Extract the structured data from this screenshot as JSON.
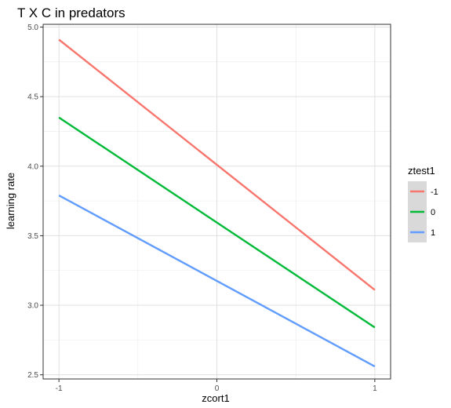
{
  "chart_data": {
    "type": "line",
    "title": "T X C in predators",
    "xlabel": "zcort1",
    "ylabel": "learning rate",
    "x": [
      -1,
      1
    ],
    "xlim": [
      -1.1,
      1.1
    ],
    "ylim": [
      2.47,
      5.02
    ],
    "xticks": [
      -1,
      0,
      1
    ],
    "xtick_labels": [
      "-1",
      "0",
      "1"
    ],
    "yticks": [
      2.5,
      3.0,
      3.5,
      4.0,
      4.5,
      5.0
    ],
    "ytick_labels": [
      "2.5",
      "3.0",
      "3.5",
      "4.0",
      "4.5",
      "5.0"
    ],
    "grid": true,
    "legend_title": "ztest1",
    "legend_position": "right",
    "series": [
      {
        "name": "-1",
        "values": [
          4.91,
          3.11
        ],
        "color": "#F8766D"
      },
      {
        "name": "0",
        "values": [
          4.35,
          2.84
        ],
        "color": "#00BA38"
      },
      {
        "name": "1",
        "values": [
          3.79,
          2.56
        ],
        "color": "#619CFF"
      }
    ]
  }
}
